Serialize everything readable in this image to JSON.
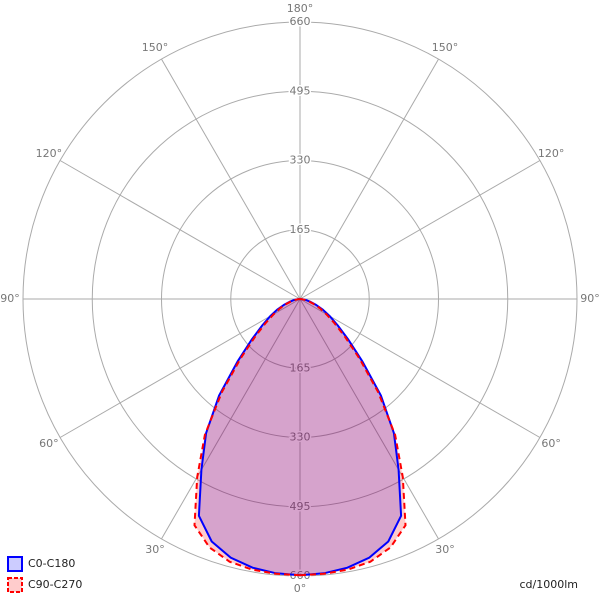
{
  "chart_data": {
    "type": "polar",
    "angles": [
      0,
      5,
      10,
      15,
      20,
      25,
      30,
      35,
      40,
      45,
      50,
      55,
      60,
      65,
      70,
      75,
      80,
      85,
      90
    ],
    "series": [
      {
        "name": "C0-C180",
        "color": "#0000ff",
        "dashed": false,
        "values": [
          658,
          656,
          650,
          638,
          615,
          570,
          470,
          390,
          300,
          210,
          150,
          110,
          82,
          60,
          40,
          25,
          14,
          6,
          0
        ]
      },
      {
        "name": "C90-C270",
        "color": "#ff0000",
        "dashed": true,
        "values": [
          658,
          657,
          655,
          648,
          630,
          595,
          490,
          395,
          290,
          200,
          140,
          100,
          72,
          52,
          35,
          22,
          12,
          5,
          0
        ]
      }
    ],
    "rlim": [
      0,
      660
    ],
    "rticks": [
      165,
      330,
      495,
      660
    ],
    "angle_ticks": [
      {
        "value": 0,
        "label": "0°"
      },
      {
        "value": 30,
        "label": "30°"
      },
      {
        "value": 60,
        "label": "60°"
      },
      {
        "value": 90,
        "label": "90°"
      },
      {
        "value": 120,
        "label": "120°"
      },
      {
        "value": 150,
        "label": "150°"
      },
      {
        "value": 180,
        "label": "180°"
      }
    ],
    "unit_label": "cd/1000lm"
  }
}
